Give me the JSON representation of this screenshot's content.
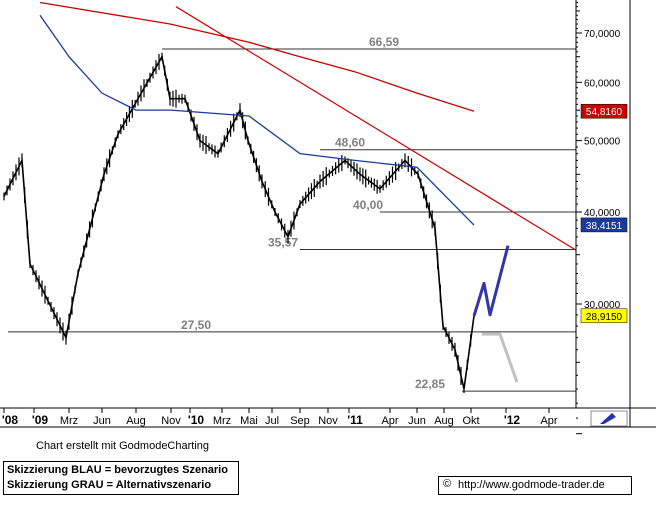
{
  "chart_data": {
    "type": "line",
    "title": "",
    "x_tick_labels": [
      "'08",
      "'09",
      "Mrz",
      "Jun",
      "Aug",
      "Nov",
      "'10",
      "Mrz",
      "Mai",
      "Jul",
      "Sep",
      "Nov",
      "'11",
      "Apr",
      "Jun",
      "Aug",
      "Okt",
      "'12",
      "Apr"
    ],
    "y_ticks": [
      30,
      40,
      50,
      60,
      70
    ],
    "y_tick_labels": [
      "30,0000",
      "40,0000",
      "50,0000",
      "60,0000",
      "70,0000"
    ],
    "ylim": [
      18.5,
      77.5
    ],
    "y_scale": "log",
    "grid": false,
    "price_markers": [
      {
        "label": "54,8160",
        "value": 54.816,
        "color": "#cc0000"
      },
      {
        "label": "38,4151",
        "value": 38.4151,
        "color": "#1a3aa0"
      },
      {
        "label": "28,9150",
        "value": 28.915,
        "color": "#ffff00"
      }
    ],
    "horizontal_levels": [
      {
        "label": "66,59",
        "value": 66.59
      },
      {
        "label": "48,60",
        "value": 48.6
      },
      {
        "label": "40,00",
        "value": 40.0
      },
      {
        "label": "35,57",
        "value": 35.57
      },
      {
        "label": "27,50",
        "value": 27.5
      },
      {
        "label": "22,85",
        "value": 22.85
      }
    ],
    "price_series": {
      "name": "",
      "points": [
        [
          "'08",
          42
        ],
        [
          "'09",
          47
        ],
        [
          "'09",
          34
        ],
        [
          "Mrz",
          27
        ],
        [
          "Mrz",
          33
        ],
        [
          "Jun",
          45
        ],
        [
          "Jun",
          51
        ],
        [
          "Aug",
          57
        ],
        [
          "Nov",
          65
        ],
        [
          "Nov",
          57
        ],
        [
          "'10",
          57
        ],
        [
          "'10",
          50
        ],
        [
          "Mrz",
          48
        ],
        [
          "Mai",
          55
        ],
        [
          "Mai",
          50
        ],
        [
          "Jul",
          44
        ],
        [
          "Jul",
          40
        ],
        [
          "Sep",
          37
        ],
        [
          "Sep",
          41
        ],
        [
          "Nov",
          44
        ],
        [
          "'11",
          47
        ],
        [
          "'11",
          45
        ],
        [
          "Apr",
          43
        ],
        [
          "Jun",
          47
        ],
        [
          "Jun",
          45
        ],
        [
          "Aug",
          38
        ],
        [
          "Aug",
          28
        ],
        [
          "Aug",
          26
        ],
        [
          "Okt",
          23
        ],
        [
          "Okt",
          28.9
        ]
      ]
    },
    "moving_averages": [
      {
        "name": "",
        "color": "#cc0000",
        "points": [
          [
            "'09",
            77
          ],
          [
            "Nov",
            72
          ],
          [
            "Mai",
            68
          ],
          [
            "Sep",
            65
          ],
          [
            "'11",
            62
          ],
          [
            "Jun",
            58
          ],
          [
            "Aug",
            54.8
          ]
        ]
      },
      {
        "name": "",
        "color": "#1a3aa0",
        "points": [
          [
            "'09",
            74
          ],
          [
            "Mrz",
            65
          ],
          [
            "Jun",
            58
          ],
          [
            "Aug",
            55
          ],
          [
            "Nov",
            55
          ],
          [
            "Mai",
            54
          ],
          [
            "Sep",
            48
          ],
          [
            "'11",
            47
          ],
          [
            "Jun",
            46
          ],
          [
            "Okt",
            38.4
          ]
        ]
      }
    ],
    "trendline": {
      "color": "#cc0000",
      "points": [
        [
          "Nov",
          76
        ],
        [
          "Apr",
          35.5
        ]
      ]
    },
    "scenarios": [
      {
        "name": "bevorzugtes Szenario",
        "color": "#3333aa",
        "points": [
          [
            "Okt",
            28.9
          ],
          [
            "Okt",
            32
          ],
          [
            "Okt",
            29
          ],
          [
            "'12",
            36
          ]
        ]
      },
      {
        "name": "Alternativszenario",
        "color": "#c0c0c0",
        "points": [
          [
            "Okt",
            27.3
          ],
          [
            "Okt",
            27.3
          ],
          [
            "'12",
            23.5
          ]
        ]
      }
    ]
  },
  "caption": "Chart erstellt mit GodmodeCharting",
  "legend": {
    "line1": "Skizzierung BLAU = bevorzugtes Szenario",
    "line2": "Skizzierung GRAU = Alternativszenario"
  },
  "source": {
    "copyright": "©",
    "url": "http://www.godmode-trader.de"
  }
}
